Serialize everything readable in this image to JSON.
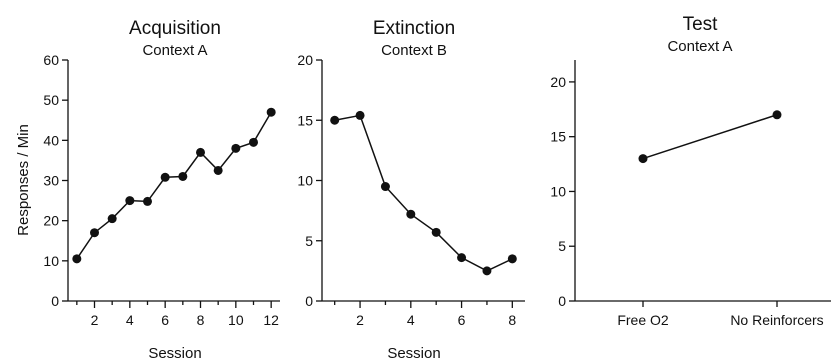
{
  "chart_data": [
    {
      "type": "line",
      "title": "Acquisition",
      "subtitle": "Context A",
      "xlabel": "Session",
      "ylabel": "Responses / Min",
      "x": [
        1,
        2,
        3,
        4,
        5,
        6,
        7,
        8,
        9,
        10,
        11,
        12
      ],
      "values": [
        10.5,
        17,
        20.5,
        25,
        24.8,
        30.8,
        31,
        37,
        32.5,
        38,
        39.5,
        47
      ],
      "xlim": [
        0.5,
        12.5
      ],
      "ylim": [
        0,
        60
      ],
      "xticks": [
        2,
        4,
        6,
        8,
        10,
        12
      ],
      "xticks_minor": [
        1,
        3,
        5,
        7,
        9,
        11
      ],
      "yticks": [
        0,
        10,
        20,
        30,
        40,
        50,
        60
      ],
      "grid": false,
      "legend": "none"
    },
    {
      "type": "line",
      "title": "Extinction",
      "subtitle": "Context B",
      "xlabel": "Session",
      "ylabel": "",
      "x": [
        1,
        2,
        3,
        4,
        5,
        6,
        7,
        8
      ],
      "values": [
        15,
        15.4,
        9.5,
        7.2,
        5.7,
        3.6,
        2.5,
        3.5
      ],
      "xlim": [
        0.5,
        8.5
      ],
      "ylim": [
        0,
        20
      ],
      "xticks": [
        2,
        4,
        6,
        8
      ],
      "xticks_minor": [
        1,
        3,
        5,
        7
      ],
      "yticks": [
        0,
        5,
        10,
        15,
        20
      ],
      "grid": false,
      "legend": "none"
    },
    {
      "type": "line",
      "title": "Test",
      "subtitle": "Context A",
      "xlabel": "",
      "ylabel": "",
      "categories": [
        "Free O2",
        "No Reinforcers"
      ],
      "values": [
        13,
        17
      ],
      "ylim": [
        0,
        22
      ],
      "yticks": [
        0,
        5,
        10,
        15,
        20
      ],
      "grid": false,
      "legend": "none"
    }
  ]
}
